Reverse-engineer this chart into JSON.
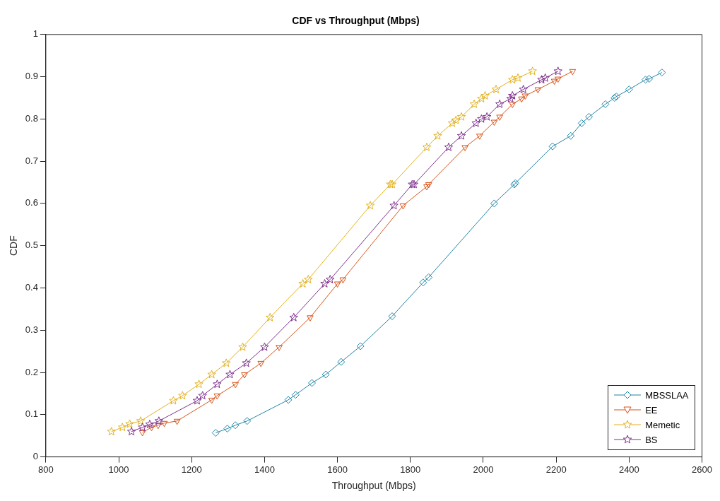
{
  "chart_data": {
    "type": "line",
    "title": "CDF vs Throughput (Mbps)",
    "xlabel": "Throughput (Mbps)",
    "ylabel": "CDF",
    "xlim": [
      800,
      2600
    ],
    "xticks": [
      800,
      1000,
      1200,
      1400,
      1600,
      1800,
      2000,
      2200,
      2400,
      2600
    ],
    "ylim": [
      0,
      1
    ],
    "yticks": [
      0,
      0.1,
      0.2,
      0.3,
      0.4,
      0.5,
      0.6,
      0.7,
      0.8,
      0.9,
      1
    ],
    "grid": false,
    "legend": "bottom right",
    "line_style": "solid",
    "series": [
      {
        "name": "MBSSLAA",
        "color": "#1f85a6",
        "marker": "diamond",
        "x": [
          1266,
          1298,
          1320,
          1352,
          1465,
          1485,
          1530,
          1568,
          1610,
          1663,
          1750,
          1835,
          1850,
          2030,
          2085,
          2088,
          2190,
          2240,
          2270,
          2290,
          2335,
          2360,
          2365,
          2400,
          2445,
          2455,
          2490
        ],
        "values": [
          0.057,
          0.067,
          0.075,
          0.085,
          0.135,
          0.147,
          0.175,
          0.195,
          0.225,
          0.262,
          0.333,
          0.413,
          0.425,
          0.6,
          0.645,
          0.648,
          0.735,
          0.76,
          0.79,
          0.805,
          0.835,
          0.85,
          0.853,
          0.87,
          0.893,
          0.895,
          0.91
        ]
      },
      {
        "name": "EE",
        "color": "#d95319",
        "marker": "triangle",
        "x": [
          1065,
          1090,
          1108,
          1125,
          1160,
          1255,
          1270,
          1320,
          1345,
          1390,
          1440,
          1525,
          1600,
          1615,
          1780,
          1845,
          1850,
          1950,
          1990,
          2030,
          2045,
          2080,
          2105,
          2115,
          2150,
          2195,
          2205,
          2245
        ],
        "values": [
          0.058,
          0.07,
          0.075,
          0.08,
          0.085,
          0.135,
          0.145,
          0.172,
          0.195,
          0.222,
          0.26,
          0.33,
          0.41,
          0.42,
          0.595,
          0.64,
          0.645,
          0.733,
          0.76,
          0.793,
          0.805,
          0.835,
          0.848,
          0.855,
          0.87,
          0.89,
          0.895,
          0.913
        ]
      },
      {
        "name": "Memetic",
        "color": "#e3b11e",
        "marker": "star",
        "x": [
          980,
          1010,
          1030,
          1060,
          1150,
          1175,
          1220,
          1255,
          1295,
          1340,
          1415,
          1505,
          1520,
          1690,
          1745,
          1750,
          1845,
          1875,
          1915,
          1925,
          1940,
          1975,
          1995,
          2005,
          2035,
          2080,
          2095,
          2135
        ],
        "values": [
          0.06,
          0.07,
          0.078,
          0.085,
          0.133,
          0.145,
          0.172,
          0.195,
          0.222,
          0.26,
          0.33,
          0.41,
          0.42,
          0.595,
          0.645,
          0.645,
          0.733,
          0.76,
          0.79,
          0.797,
          0.805,
          0.835,
          0.848,
          0.855,
          0.87,
          0.893,
          0.897,
          0.913
        ]
      },
      {
        "name": "BS",
        "color": "#7e2f8e",
        "marker": "star",
        "x": [
          1035,
          1065,
          1085,
          1110,
          1215,
          1230,
          1270,
          1305,
          1350,
          1400,
          1480,
          1565,
          1580,
          1755,
          1805,
          1810,
          1905,
          1940,
          1980,
          1995,
          2010,
          2045,
          2075,
          2080,
          2110,
          2160,
          2170,
          2205
        ],
        "values": [
          0.06,
          0.07,
          0.077,
          0.085,
          0.133,
          0.145,
          0.172,
          0.195,
          0.222,
          0.26,
          0.33,
          0.41,
          0.42,
          0.595,
          0.645,
          0.645,
          0.733,
          0.76,
          0.79,
          0.8,
          0.805,
          0.835,
          0.848,
          0.855,
          0.87,
          0.893,
          0.897,
          0.913
        ]
      }
    ]
  }
}
